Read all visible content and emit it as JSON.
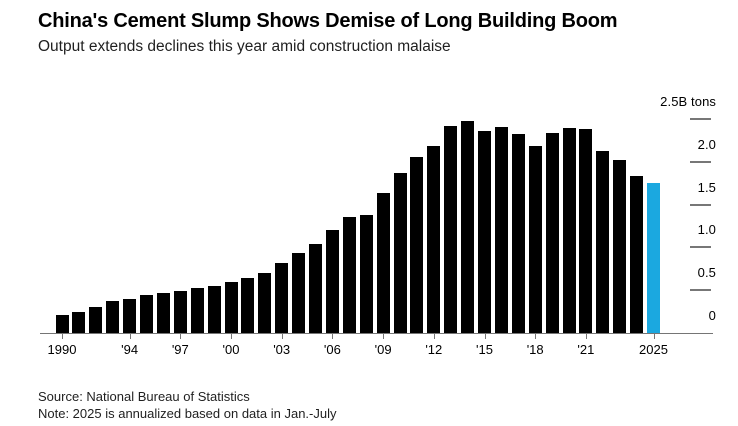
{
  "header": {
    "title": "China's Cement Slump Shows Demise of Long Building Boom",
    "subtitle": "Output extends declines this year amid construction malaise"
  },
  "footer": {
    "source": "Source: National Bureau of Statistics",
    "note": "Note: 2025 is annualized based on data in Jan.-July"
  },
  "colors": {
    "bar": "#000000",
    "highlight_bar": "#1ba8e0",
    "axis_line": "#757575",
    "tick_dash": "#777777",
    "label_text": "#000000"
  },
  "chart_data": {
    "type": "bar",
    "title": "China's Cement Slump Shows Demise of Long Building Boom",
    "subtitle": "Output extends declines this year amid construction malaise",
    "unit": "billion tons",
    "x": [
      1990,
      1991,
      1992,
      1993,
      1994,
      1995,
      1996,
      1997,
      1998,
      1999,
      2000,
      2001,
      2002,
      2003,
      2004,
      2005,
      2006,
      2007,
      2008,
      2009,
      2010,
      2011,
      2012,
      2013,
      2014,
      2015,
      2016,
      2017,
      2018,
      2019,
      2020,
      2021,
      2022,
      2023,
      2024,
      2025
    ],
    "values": [
      0.21,
      0.25,
      0.3,
      0.37,
      0.4,
      0.44,
      0.47,
      0.49,
      0.52,
      0.55,
      0.59,
      0.64,
      0.7,
      0.82,
      0.94,
      1.04,
      1.2,
      1.35,
      1.38,
      1.63,
      1.87,
      2.06,
      2.18,
      2.42,
      2.48,
      2.36,
      2.41,
      2.33,
      2.18,
      2.34,
      2.4,
      2.38,
      2.13,
      2.02,
      1.83,
      1.75
    ],
    "highlight_x": 2025,
    "highlight_note": "2025 bar shown in blue (annualized)",
    "ylim": [
      0,
      2.5
    ],
    "y_ticks": [
      0,
      0.5,
      1.0,
      1.5,
      2.0,
      2.5
    ],
    "y_tick_labels": [
      "0",
      "0.5",
      "1.0",
      "1.5",
      "2.0",
      "2.5B tons"
    ],
    "x_tick_years": [
      1990,
      1994,
      1997,
      2000,
      2003,
      2006,
      2009,
      2012,
      2015,
      2018,
      2021,
      2025
    ],
    "x_tick_labels": [
      "1990",
      "'94",
      "'97",
      "'00",
      "'03",
      "'06",
      "'09",
      "'12",
      "'15",
      "'18",
      "'21",
      "2025"
    ],
    "grid": false,
    "legend_position": "none",
    "y_axis_side": "right"
  }
}
